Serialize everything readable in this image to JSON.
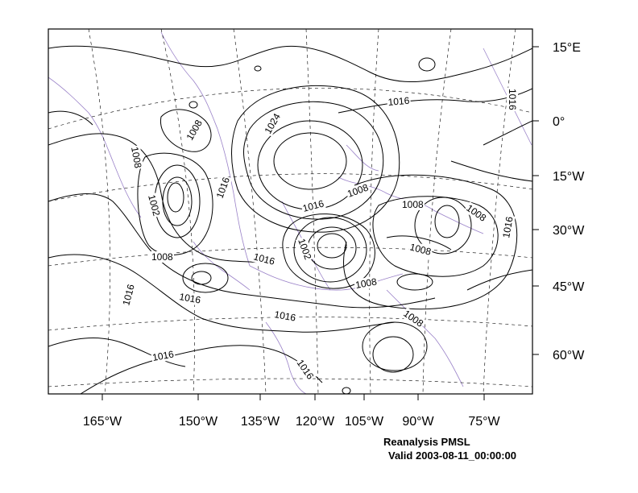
{
  "map": {
    "right_axis_labels": [
      "15°E",
      "0°",
      "15°W",
      "30°W",
      "45°W",
      "60°W"
    ],
    "bottom_axis_labels": [
      "165°W",
      "150°W",
      "135°W",
      "120°W",
      "105°W",
      "90°W",
      "75°W"
    ],
    "contour_labels": [
      "1016",
      "1016",
      "1008",
      "1024",
      "1008",
      "1016",
      "1002",
      "1016",
      "1008",
      "1008",
      "1008",
      "1002",
      "1016",
      "1008",
      "1008",
      "1016",
      "1008",
      "1016",
      "1016",
      "1016",
      "1008",
      "1016",
      "1016"
    ],
    "colors": {
      "contour": "#000000",
      "coastline": "#9a82c8",
      "graticule": "#000000"
    }
  },
  "caption": {
    "line1": "Reanalysis PMSL",
    "line2": "Valid 2003-08-11_00:00:00"
  }
}
